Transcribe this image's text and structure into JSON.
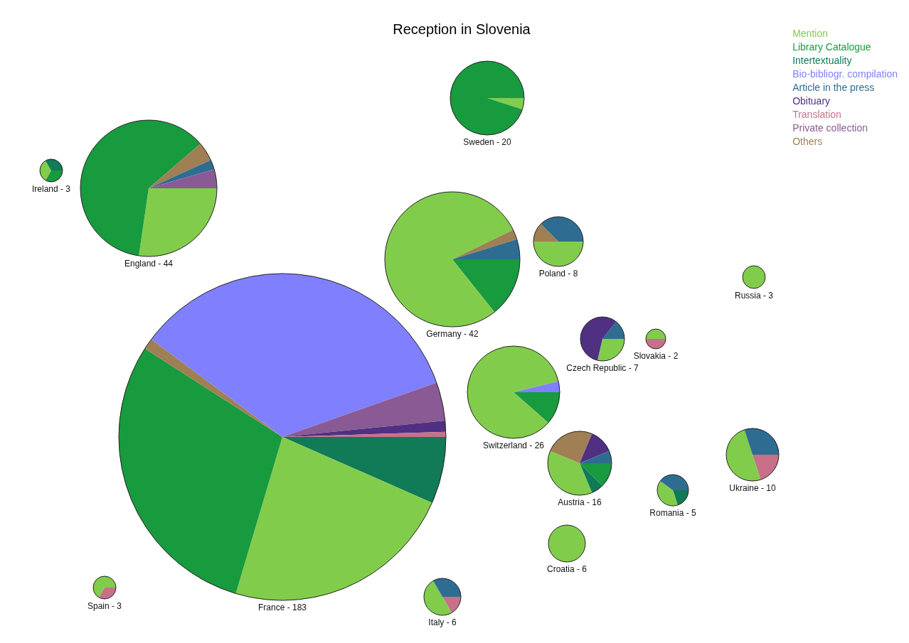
{
  "chart_data": [
    {
      "type": "other",
      "title": "Reception in Slovenia",
      "categories": [
        "Mention",
        "Library Catalogue",
        "Intertextuality",
        "Bio-bibliogr. compilation",
        "Article in the press",
        "Obituary",
        "Translation",
        "Private collection",
        "Others"
      ],
      "colors": [
        "#82cc4c",
        "#189a3e",
        "#117a57",
        "#8080ff",
        "#2e6d91",
        "#4f3082",
        "#c8708a",
        "#8a5a94",
        "#a07f55"
      ]
    },
    {
      "type": "pie",
      "title": "Sweden - 20",
      "values": [
        5,
        95
      ],
      "colors": [
        "#82cc4c",
        "#189a3e"
      ]
    },
    {
      "type": "pie",
      "title": "Ireland - 3",
      "values": [
        33.3,
        33.3,
        33.4
      ],
      "colors": [
        "#189a3e",
        "#82cc4c",
        "#117a57"
      ]
    },
    {
      "type": "pie",
      "title": "England - 44",
      "values": [
        27.3,
        61.4,
        4.5,
        2.3,
        4.5
      ],
      "colors": [
        "#82cc4c",
        "#189a3e",
        "#a07f55",
        "#2e6d91",
        "#8a5a94"
      ]
    },
    {
      "type": "pie",
      "title": "Germany - 42",
      "values": [
        14.3,
        78.5,
        2.4,
        4.8
      ],
      "colors": [
        "#189a3e",
        "#82cc4c",
        "#a07f55",
        "#2e6d91"
      ]
    },
    {
      "type": "pie",
      "title": "Poland - 8",
      "values": [
        50,
        12.5,
        37.5
      ],
      "colors": [
        "#82cc4c",
        "#a07f55",
        "#2e6d91"
      ]
    },
    {
      "type": "pie",
      "title": "Russia - 3",
      "values": [
        100
      ],
      "colors": [
        "#82cc4c"
      ]
    },
    {
      "type": "pie",
      "title": "Czech Republic - 7",
      "values": [
        28.6,
        57.1,
        14.3
      ],
      "colors": [
        "#82cc4c",
        "#4f3082",
        "#2e6d91"
      ]
    },
    {
      "type": "pie",
      "title": "Slovakia - 2",
      "values": [
        50,
        50
      ],
      "colors": [
        "#c8708a",
        "#82cc4c"
      ]
    },
    {
      "type": "pie",
      "title": "Switzerland - 26",
      "values": [
        11.5,
        84.7,
        3.8
      ],
      "colors": [
        "#189a3e",
        "#82cc4c",
        "#8080ff"
      ]
    },
    {
      "type": "pie",
      "title": "France - 183",
      "values": [
        6.6,
        23,
        29.5,
        1.1,
        34.4,
        3.8,
        1.1,
        0.5
      ],
      "colors": [
        "#117a57",
        "#82cc4c",
        "#189a3e",
        "#a07f55",
        "#8080ff",
        "#8a5a94",
        "#4f3082",
        "#c8708a"
      ]
    },
    {
      "type": "pie",
      "title": "Austria - 16",
      "values": [
        12.5,
        6.25,
        37.5,
        25,
        12.5,
        6.25
      ],
      "colors": [
        "#189a3e",
        "#117a57",
        "#82cc4c",
        "#a07f55",
        "#4f3082",
        "#2e6d91"
      ]
    },
    {
      "type": "pie",
      "title": "Ukraine - 10",
      "values": [
        20,
        50,
        30
      ],
      "colors": [
        "#c8708a",
        "#82cc4c",
        "#2e6d91"
      ]
    },
    {
      "type": "pie",
      "title": "Romania - 5",
      "values": [
        20,
        40,
        40
      ],
      "colors": [
        "#117a57",
        "#82cc4c",
        "#2e6d91"
      ]
    },
    {
      "type": "pie",
      "title": "Croatia - 6",
      "values": [
        100
      ],
      "colors": [
        "#82cc4c"
      ]
    },
    {
      "type": "pie",
      "title": "Spain - 3",
      "values": [
        33.3,
        66.7
      ],
      "colors": [
        "#c8708a",
        "#82cc4c"
      ]
    },
    {
      "type": "pie",
      "title": "Italy - 6",
      "values": [
        16.7,
        50,
        33.3
      ],
      "colors": [
        "#c8708a",
        "#82cc4c",
        "#2e6d91"
      ]
    }
  ]
}
